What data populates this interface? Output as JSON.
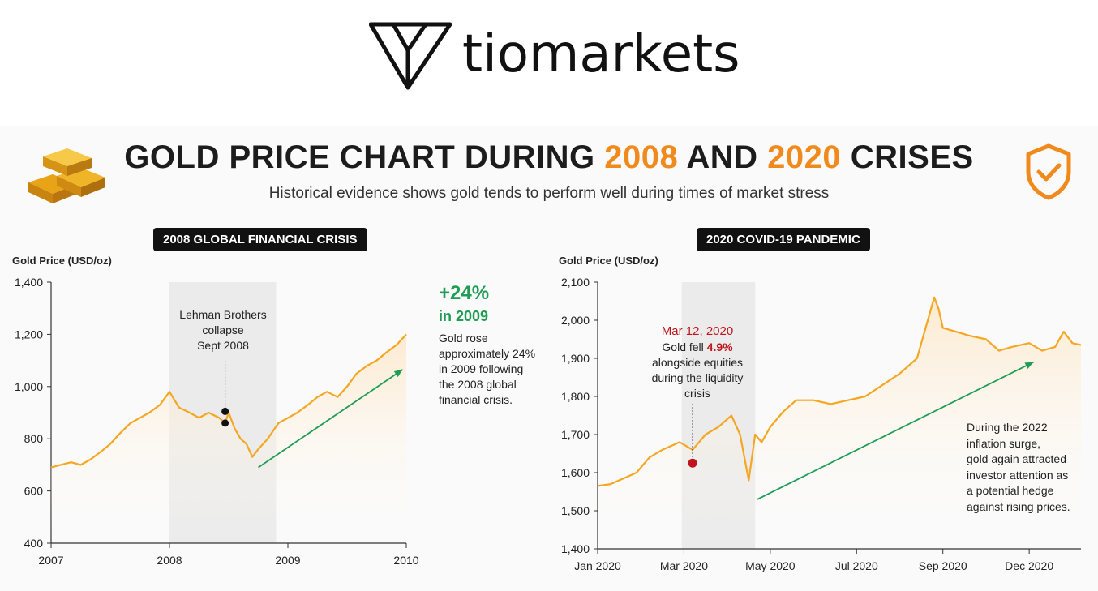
{
  "brand": {
    "logo_text": "tiomarkets",
    "logo_icon": "tiomarkets-logo-icon"
  },
  "header": {
    "title_part1": "GOLD PRICE CHART DURING ",
    "title_year1": "2008",
    "title_part2": " AND ",
    "title_year2": "2020",
    "title_part3": " CRISES",
    "subtitle": "Historical evidence shows gold tends to perform well during times of market stress",
    "left_icon": "gold-bars-icon",
    "right_icon": "shield-check-icon"
  },
  "colors": {
    "accent": "#f08a1c",
    "line": "#f5a623",
    "green": "#1f9d55",
    "red": "#c0141c",
    "shade": "#ebebeb"
  },
  "panel_2008": {
    "pill": "2008 GLOBAL FINANCIAL CRISIS",
    "annotation_lines": [
      "Lehman Brothers",
      "collapse",
      "Sept 2008"
    ],
    "gain_big": "+24%",
    "gain_sub": "in 2009",
    "gain_text_lines": [
      "Gold rose",
      "approximately 24%",
      "in 2009 following",
      "the 2008 global",
      "financial crisis."
    ]
  },
  "panel_2020": {
    "pill": "2020 COVID-19 PANDEMIC",
    "annotation_date": "Mar 12, 2020",
    "annotation_line1a": "Gold fell ",
    "annotation_line1b": "4.9%",
    "annotation_lines": [
      "alongside equities",
      "during the liquidity",
      "crisis"
    ],
    "note_lines": [
      "During the 2022",
      "inflation surge,",
      "gold again attracted",
      "investor attention as",
      "a potential hedge",
      "against rising prices."
    ]
  },
  "chart_data": [
    {
      "type": "line",
      "title": "2008 GLOBAL FINANCIAL CRISIS",
      "ylabel": "Gold Price (USD/oz)",
      "xlabel": "",
      "ylim": [
        400,
        1400
      ],
      "yticks": [
        400,
        600,
        800,
        1000,
        1200,
        1400
      ],
      "ytick_labels": [
        "400",
        "600",
        "800",
        "1,000",
        "1,200",
        "1,400"
      ],
      "xlim": [
        2007.0,
        2010.0
      ],
      "xticks": [
        2007,
        2008,
        2009,
        2010
      ],
      "xtick_labels": [
        "2007",
        "2008",
        "2009",
        "2010"
      ],
      "shaded_region": [
        2008.0,
        2008.9
      ],
      "series": [
        {
          "values_x": [
            2007.0,
            2007.08,
            2007.17,
            2007.25,
            2007.33,
            2007.42,
            2007.5,
            2007.58,
            2007.67,
            2007.75,
            2007.83,
            2007.92,
            2008.0,
            2008.08,
            2008.17,
            2008.25,
            2008.33,
            2008.42,
            2008.47,
            2008.5,
            2008.55,
            2008.6,
            2008.65,
            2008.7,
            2008.75,
            2008.83,
            2008.92,
            2009.0,
            2009.08,
            2009.17,
            2009.25,
            2009.33,
            2009.42,
            2009.5,
            2009.58,
            2009.67,
            2009.75,
            2009.83,
            2009.92,
            2010.0
          ],
          "values_y": [
            690,
            700,
            710,
            700,
            720,
            750,
            780,
            820,
            860,
            880,
            900,
            930,
            980,
            920,
            900,
            880,
            900,
            880,
            860,
            900,
            840,
            800,
            780,
            730,
            760,
            800,
            860,
            880,
            900,
            930,
            960,
            980,
            960,
            1000,
            1050,
            1080,
            1100,
            1130,
            1160,
            1200
          ]
        }
      ],
      "markers": [
        {
          "x": 2008.47,
          "y": 905
        },
        {
          "x": 2008.47,
          "y": 860
        }
      ],
      "trend_arrow": {
        "from": [
          2008.75,
          690
        ],
        "to": [
          2009.97,
          1065
        ]
      }
    },
    {
      "type": "line",
      "title": "2020 COVID-19 PANDEMIC",
      "ylabel": "Gold Price (USD/oz)",
      "xlabel": "",
      "ylim": [
        1400,
        2100
      ],
      "yticks": [
        1400,
        1500,
        1600,
        1700,
        1800,
        1900,
        2000,
        2100
      ],
      "ytick_labels": [
        "1,400",
        "1,500",
        "1,600",
        "1,700",
        "1,800",
        "1,900",
        "2,000",
        "2,100"
      ],
      "xlim": [
        0,
        11.2
      ],
      "xticks": [
        0,
        2,
        4,
        6,
        8,
        10
      ],
      "xtick_labels": [
        "Jan 2020",
        "Mar 2020",
        "May 2020",
        "Jul 2020",
        "Sep 2020",
        "Dec 2020"
      ],
      "shaded_region": [
        1.95,
        3.65
      ],
      "series": [
        {
          "values_x": [
            0,
            0.3,
            0.6,
            0.9,
            1.2,
            1.5,
            1.7,
            1.9,
            2.2,
            2.5,
            2.8,
            3.1,
            3.3,
            3.5,
            3.65,
            3.8,
            4.0,
            4.3,
            4.6,
            5.0,
            5.4,
            5.8,
            6.2,
            6.6,
            7.0,
            7.4,
            7.8,
            7.9,
            8.0,
            8.3,
            8.6,
            9.0,
            9.3,
            9.6,
            10.0,
            10.3,
            10.6,
            10.8,
            11.0,
            11.2
          ],
          "values_y": [
            1565,
            1570,
            1585,
            1600,
            1640,
            1660,
            1670,
            1680,
            1660,
            1700,
            1720,
            1750,
            1700,
            1580,
            1700,
            1680,
            1720,
            1760,
            1790,
            1790,
            1780,
            1790,
            1800,
            1830,
            1860,
            1900,
            2060,
            2030,
            1980,
            1970,
            1960,
            1950,
            1920,
            1930,
            1940,
            1920,
            1930,
            1970,
            1940,
            1935
          ]
        }
      ],
      "markers": [
        {
          "x": 2.2,
          "y": 1625
        }
      ],
      "trend_arrow": {
        "from": [
          3.7,
          1530
        ],
        "to": [
          10.1,
          1890
        ]
      }
    }
  ]
}
